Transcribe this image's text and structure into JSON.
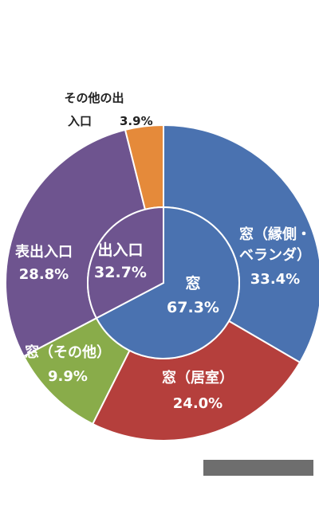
{
  "chart_data": {
    "type": "pie",
    "variant": "nested-donut",
    "title": "",
    "outer": {
      "slices": [
        {
          "label": [
            "窓（縁側・",
            "ベランダ）"
          ],
          "value": 33.4,
          "display": "33.4%",
          "color": "#4a72b0",
          "label_color": "light"
        },
        {
          "label": [
            "窓（居室）"
          ],
          "value": 24.0,
          "display": "24.0%",
          "color": "#b53f3c",
          "label_color": "light"
        },
        {
          "label": [
            "窓（その他）"
          ],
          "value": 9.9,
          "display": "9.9%",
          "color": "#89ac4a",
          "label_color": "light"
        },
        {
          "label": [
            "表出入口"
          ],
          "value": 28.8,
          "display": "28.8%",
          "color": "#6e548f",
          "label_color": "light"
        },
        {
          "label": [
            "その他の出",
            "入口"
          ],
          "value": 3.9,
          "display": "3.9%",
          "color": "#e58a3a",
          "label_color": "dark"
        }
      ]
    },
    "inner": {
      "slices": [
        {
          "label": [
            "窓"
          ],
          "value": 67.3,
          "display": "67.3%",
          "color": "#4a72b0",
          "label_color": "light"
        },
        {
          "label": [
            "出入口"
          ],
          "value": 32.7,
          "display": "32.7%",
          "color": "#6e548f",
          "label_color": "light"
        }
      ]
    }
  }
}
